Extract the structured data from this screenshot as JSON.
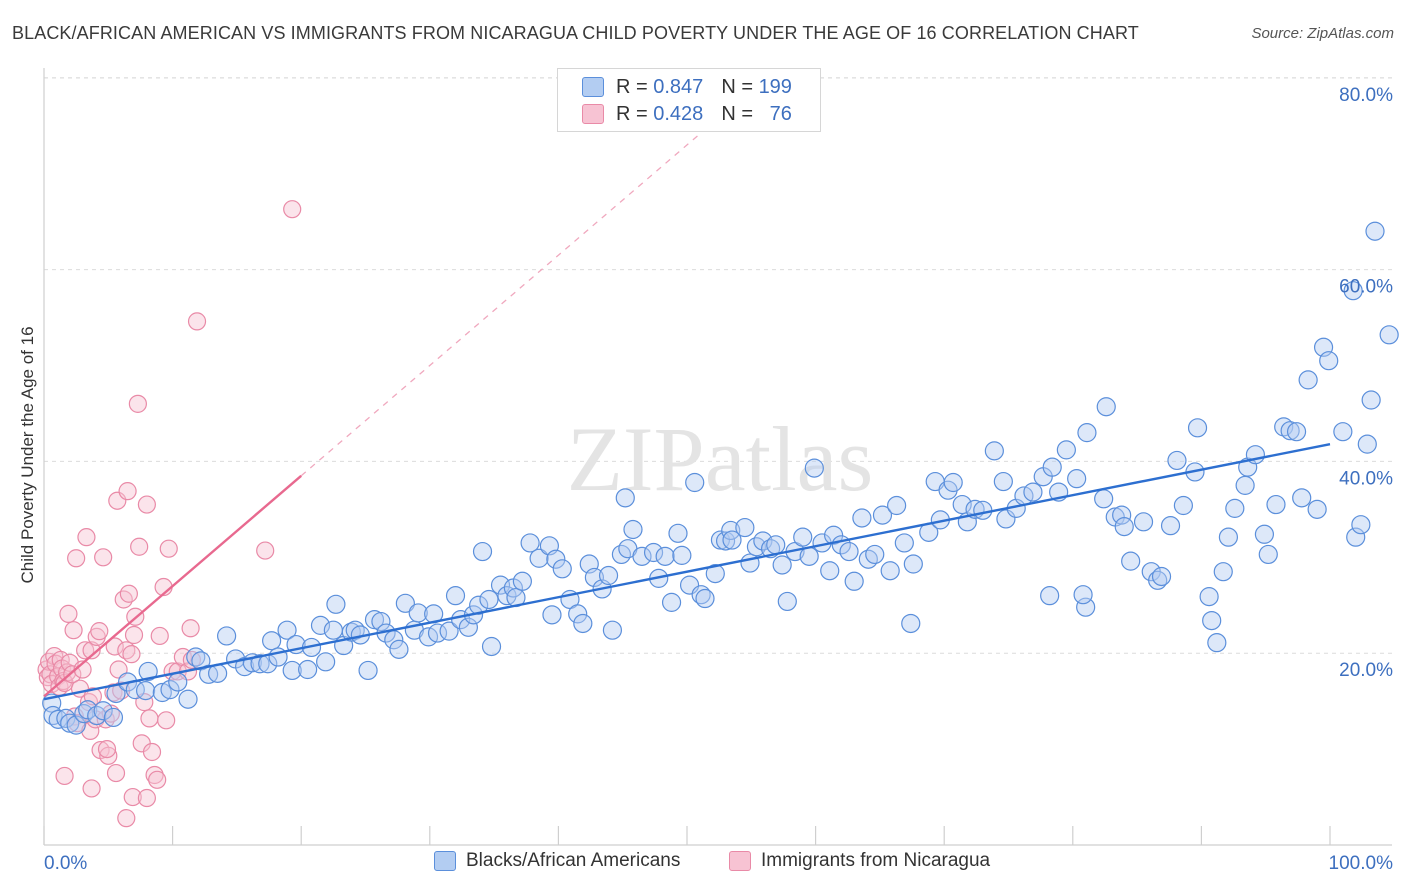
{
  "title": "BLACK/AFRICAN AMERICAN VS IMMIGRANTS FROM NICARAGUA CHILD POVERTY UNDER THE AGE OF 16 CORRELATION CHART",
  "source": "Source: ZipAtlas.com",
  "watermark": "ZIPatlas",
  "colors": {
    "blue": "#5b8fdb",
    "blue_fill": "#b3cdf2",
    "blue_line": "#2d6fd0",
    "pink": "#e98aa7",
    "pink_fill": "#f7c3d3",
    "pink_line": "#e8698f",
    "axis_text": "#3d6fbf"
  },
  "legend": {
    "rows": [
      {
        "r_label": "R =",
        "r_value": "0.847",
        "n_label": "N =",
        "n_value": "199"
      },
      {
        "r_label": "R =",
        "r_value": "0.428",
        "n_label": "N =",
        "n_value": "76"
      }
    ]
  },
  "bottom_legend": [
    "Blacks/African Americans",
    "Immigrants from Nicaragua"
  ],
  "chart_data": {
    "type": "scatter",
    "title": "BLACK/AFRICAN AMERICAN VS IMMIGRANTS FROM NICARAGUA CHILD POVERTY UNDER THE AGE OF 16 CORRELATION CHART",
    "xlabel": "",
    "ylabel": "Child Poverty Under the Age of 16",
    "xlim": [
      0,
      100
    ],
    "ylim": [
      0,
      85
    ],
    "x_ticks": [
      "0.0%",
      "100.0%"
    ],
    "y_ticks": [
      {
        "value": 20,
        "label": "20.0%"
      },
      {
        "value": 40,
        "label": "40.0%"
      },
      {
        "value": 60,
        "label": "60.0%"
      },
      {
        "value": 80,
        "label": "80.0%"
      }
    ],
    "grid": true,
    "legend_position": "top-center",
    "series": [
      {
        "name": "Blacks/African Americans",
        "r": 0.847,
        "n": 199,
        "trend": {
          "x": [
            0,
            100
          ],
          "y": [
            15.2,
            41.8
          ]
        },
        "points": [
          [
            0.6,
            14.8
          ],
          [
            0.7,
            13.5
          ],
          [
            1.1,
            13.1
          ],
          [
            1.7,
            13.2
          ],
          [
            2.0,
            12.7
          ],
          [
            2.5,
            12.5
          ],
          [
            3.1,
            13.7
          ],
          [
            3.4,
            14.1
          ],
          [
            4.1,
            13.5
          ],
          [
            4.6,
            14.0
          ],
          [
            5.4,
            13.3
          ],
          [
            5.6,
            15.8
          ],
          [
            6.5,
            17.0
          ],
          [
            7.1,
            16.2
          ],
          [
            7.9,
            16.1
          ],
          [
            8.1,
            18.1
          ],
          [
            9.2,
            15.9
          ],
          [
            9.8,
            16.2
          ],
          [
            10.4,
            17.0
          ],
          [
            11.2,
            15.2
          ],
          [
            11.8,
            19.6
          ],
          [
            12.2,
            19.2
          ],
          [
            12.8,
            17.8
          ],
          [
            13.5,
            17.9
          ],
          [
            14.2,
            21.8
          ],
          [
            14.9,
            19.4
          ],
          [
            15.6,
            18.6
          ],
          [
            16.2,
            19.0
          ],
          [
            16.8,
            18.9
          ],
          [
            17.4,
            18.9
          ],
          [
            17.7,
            21.3
          ],
          [
            18.2,
            19.6
          ],
          [
            18.9,
            22.4
          ],
          [
            19.3,
            18.2
          ],
          [
            19.6,
            20.9
          ],
          [
            20.5,
            18.3
          ],
          [
            20.8,
            20.6
          ],
          [
            21.5,
            22.9
          ],
          [
            21.9,
            19.1
          ],
          [
            22.5,
            22.4
          ],
          [
            22.7,
            25.1
          ],
          [
            23.3,
            20.8
          ],
          [
            23.9,
            22.2
          ],
          [
            24.2,
            22.4
          ],
          [
            24.6,
            21.9
          ],
          [
            25.2,
            18.2
          ],
          [
            25.7,
            23.5
          ],
          [
            26.2,
            23.3
          ],
          [
            26.6,
            22.1
          ],
          [
            27.2,
            21.4
          ],
          [
            27.6,
            20.4
          ],
          [
            28.1,
            25.2
          ],
          [
            28.8,
            22.4
          ],
          [
            29.1,
            24.2
          ],
          [
            29.9,
            21.7
          ],
          [
            30.3,
            24.1
          ],
          [
            30.6,
            22.1
          ],
          [
            31.5,
            22.3
          ],
          [
            32.0,
            26.0
          ],
          [
            32.4,
            23.5
          ],
          [
            33.0,
            22.7
          ],
          [
            33.4,
            24.0
          ],
          [
            33.8,
            25.0
          ],
          [
            34.8,
            20.7
          ],
          [
            34.1,
            30.6
          ],
          [
            34.6,
            25.6
          ],
          [
            35.5,
            27.1
          ],
          [
            36.0,
            26.0
          ],
          [
            36.5,
            26.8
          ],
          [
            36.7,
            25.8
          ],
          [
            37.2,
            27.5
          ],
          [
            37.8,
            31.5
          ],
          [
            38.5,
            29.9
          ],
          [
            39.5,
            24.0
          ],
          [
            39.3,
            31.2
          ],
          [
            39.8,
            29.8
          ],
          [
            40.3,
            28.8
          ],
          [
            40.9,
            25.6
          ],
          [
            41.5,
            24.1
          ],
          [
            41.9,
            23.1
          ],
          [
            42.4,
            29.3
          ],
          [
            42.8,
            27.9
          ],
          [
            43.4,
            26.7
          ],
          [
            43.9,
            28.1
          ],
          [
            44.2,
            22.4
          ],
          [
            44.9,
            30.3
          ],
          [
            45.4,
            30.9
          ],
          [
            45.8,
            32.9
          ],
          [
            45.2,
            36.2
          ],
          [
            46.5,
            30.1
          ],
          [
            47.4,
            30.5
          ],
          [
            47.8,
            27.8
          ],
          [
            48.3,
            30.1
          ],
          [
            48.8,
            25.3
          ],
          [
            49.3,
            32.5
          ],
          [
            49.6,
            30.2
          ],
          [
            50.2,
            27.1
          ],
          [
            50.6,
            37.8
          ],
          [
            51.1,
            26.1
          ],
          [
            51.4,
            25.7
          ],
          [
            52.2,
            28.3
          ],
          [
            52.6,
            31.8
          ],
          [
            53.0,
            31.7
          ],
          [
            53.4,
            32.8
          ],
          [
            53.5,
            31.8
          ],
          [
            54.5,
            33.1
          ],
          [
            54.9,
            29.4
          ],
          [
            55.4,
            31.1
          ],
          [
            55.9,
            31.7
          ],
          [
            56.5,
            30.9
          ],
          [
            56.9,
            31.3
          ],
          [
            57.4,
            29.2
          ],
          [
            57.8,
            25.4
          ],
          [
            58.4,
            30.6
          ],
          [
            59.0,
            32.1
          ],
          [
            59.5,
            30.1
          ],
          [
            59.9,
            39.3
          ],
          [
            60.5,
            31.5
          ],
          [
            61.1,
            28.6
          ],
          [
            61.4,
            32.3
          ],
          [
            62.0,
            31.3
          ],
          [
            62.6,
            30.6
          ],
          [
            63.0,
            27.5
          ],
          [
            63.6,
            34.1
          ],
          [
            64.1,
            29.8
          ],
          [
            64.6,
            30.3
          ],
          [
            65.2,
            34.4
          ],
          [
            65.8,
            28.6
          ],
          [
            66.3,
            35.4
          ],
          [
            66.9,
            31.5
          ],
          [
            67.6,
            29.3
          ],
          [
            67.4,
            23.1
          ],
          [
            68.8,
            32.6
          ],
          [
            69.3,
            37.9
          ],
          [
            69.7,
            33.9
          ],
          [
            70.3,
            37.0
          ],
          [
            70.7,
            37.8
          ],
          [
            71.4,
            35.5
          ],
          [
            71.8,
            33.7
          ],
          [
            72.4,
            35.0
          ],
          [
            73.0,
            34.9
          ],
          [
            73.9,
            41.1
          ],
          [
            74.6,
            37.9
          ],
          [
            74.8,
            34.0
          ],
          [
            75.6,
            35.1
          ],
          [
            76.2,
            36.4
          ],
          [
            76.9,
            36.8
          ],
          [
            77.7,
            38.4
          ],
          [
            78.4,
            39.4
          ],
          [
            78.2,
            26.0
          ],
          [
            78.9,
            36.8
          ],
          [
            79.5,
            41.2
          ],
          [
            80.3,
            38.2
          ],
          [
            81.0,
            24.8
          ],
          [
            80.8,
            26.1
          ],
          [
            81.1,
            43.0
          ],
          [
            82.4,
            36.1
          ],
          [
            82.6,
            45.7
          ],
          [
            83.3,
            34.2
          ],
          [
            83.8,
            34.4
          ],
          [
            84.0,
            33.2
          ],
          [
            84.5,
            29.6
          ],
          [
            85.5,
            33.7
          ],
          [
            86.1,
            28.5
          ],
          [
            86.6,
            27.6
          ],
          [
            86.9,
            28.0
          ],
          [
            87.6,
            33.3
          ],
          [
            88.1,
            40.1
          ],
          [
            88.6,
            35.4
          ],
          [
            89.5,
            38.9
          ],
          [
            89.7,
            43.5
          ],
          [
            90.8,
            23.4
          ],
          [
            90.6,
            25.9
          ],
          [
            91.2,
            21.1
          ],
          [
            91.7,
            28.5
          ],
          [
            92.1,
            32.1
          ],
          [
            92.6,
            35.1
          ],
          [
            93.4,
            37.5
          ],
          [
            93.6,
            39.4
          ],
          [
            94.2,
            40.7
          ],
          [
            94.9,
            32.4
          ],
          [
            95.2,
            30.3
          ],
          [
            95.8,
            35.5
          ],
          [
            96.4,
            43.6
          ],
          [
            96.9,
            43.2
          ],
          [
            97.4,
            43.1
          ],
          [
            97.8,
            36.2
          ],
          [
            98.3,
            48.5
          ],
          [
            99.0,
            35.0
          ],
          [
            99.5,
            51.9
          ],
          [
            99.9,
            50.5
          ],
          [
            101.0,
            43.1
          ],
          [
            102.0,
            32.1
          ],
          [
            102.4,
            33.4
          ],
          [
            102.9,
            41.8
          ],
          [
            103.2,
            46.4
          ],
          [
            101.8,
            57.8
          ],
          [
            103.5,
            64.0
          ],
          [
            104.6,
            53.2
          ]
        ]
      },
      {
        "name": "Immigrants from Nicaragua",
        "r": 0.428,
        "n": 76,
        "trend": {
          "x": [
            0,
            20
          ],
          "y": [
            15.5,
            38.5
          ]
        },
        "points": [
          [
            0.2,
            18.3
          ],
          [
            0.3,
            17.5
          ],
          [
            0.4,
            19.1
          ],
          [
            0.5,
            17.8
          ],
          [
            0.6,
            16.8
          ],
          [
            0.8,
            19.7
          ],
          [
            0.9,
            18.9
          ],
          [
            1.1,
            17.6
          ],
          [
            1.2,
            16.5
          ],
          [
            1.3,
            19.3
          ],
          [
            1.4,
            18.4
          ],
          [
            1.5,
            17.1
          ],
          [
            1.6,
            16.9
          ],
          [
            1.8,
            18.0
          ],
          [
            1.9,
            24.1
          ],
          [
            2.0,
            19.0
          ],
          [
            2.2,
            17.8
          ],
          [
            2.3,
            22.4
          ],
          [
            2.4,
            13.4
          ],
          [
            2.5,
            29.9
          ],
          [
            2.6,
            12.7
          ],
          [
            2.8,
            16.3
          ],
          [
            3.0,
            18.3
          ],
          [
            3.2,
            20.3
          ],
          [
            3.3,
            32.1
          ],
          [
            3.5,
            14.9
          ],
          [
            3.6,
            11.9
          ],
          [
            3.7,
            20.3
          ],
          [
            3.8,
            15.5
          ],
          [
            4.0,
            13.1
          ],
          [
            4.1,
            21.7
          ],
          [
            4.3,
            22.3
          ],
          [
            4.4,
            9.9
          ],
          [
            4.6,
            30.0
          ],
          [
            4.8,
            13.1
          ],
          [
            5.0,
            9.3
          ],
          [
            5.2,
            13.7
          ],
          [
            5.4,
            15.9
          ],
          [
            5.5,
            20.7
          ],
          [
            5.7,
            35.9
          ],
          [
            5.8,
            18.3
          ],
          [
            6.0,
            16.1
          ],
          [
            6.2,
            25.6
          ],
          [
            6.4,
            20.3
          ],
          [
            6.5,
            36.9
          ],
          [
            6.6,
            26.2
          ],
          [
            6.8,
            19.9
          ],
          [
            7.0,
            21.9
          ],
          [
            7.1,
            23.8
          ],
          [
            7.3,
            46.0
          ],
          [
            7.4,
            31.1
          ],
          [
            7.6,
            10.6
          ],
          [
            7.8,
            14.9
          ],
          [
            8.0,
            35.5
          ],
          [
            8.2,
            13.2
          ],
          [
            8.4,
            9.7
          ],
          [
            8.6,
            7.3
          ],
          [
            8.8,
            6.8
          ],
          [
            9.0,
            21.8
          ],
          [
            9.3,
            26.9
          ],
          [
            9.5,
            13.0
          ],
          [
            9.7,
            30.9
          ],
          [
            10.0,
            18.1
          ],
          [
            10.4,
            18.1
          ],
          [
            10.8,
            19.6
          ],
          [
            11.2,
            18.1
          ],
          [
            11.5,
            19.3
          ],
          [
            1.6,
            7.2
          ],
          [
            3.7,
            5.9
          ],
          [
            4.9,
            10.0
          ],
          [
            5.6,
            7.5
          ],
          [
            6.4,
            2.8
          ],
          [
            6.9,
            5.0
          ],
          [
            8.0,
            4.9
          ],
          [
            11.9,
            54.6
          ],
          [
            19.3,
            66.3
          ],
          [
            17.2,
            30.7
          ],
          [
            11.4,
            22.6
          ]
        ]
      }
    ]
  }
}
